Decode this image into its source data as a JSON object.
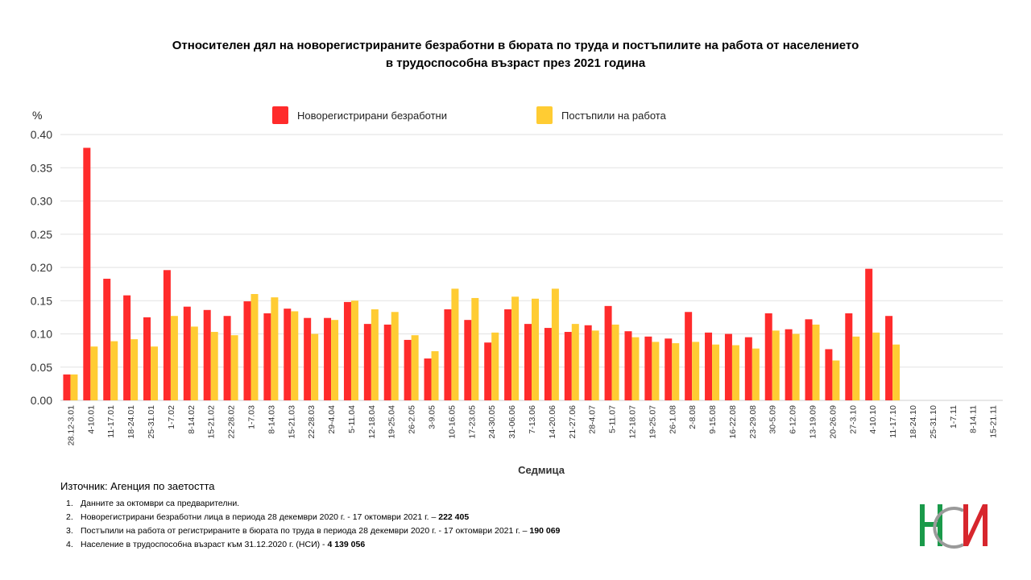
{
  "title_line1": "Относителен дял на новорегистрираните безработни в бюрата по труда и постъпилите на работа от населението",
  "title_line2": "в трудоспособна възраст през 2021 година",
  "source": "Източник: Агенция по заетостта",
  "notes": [
    {
      "num": "1.",
      "text": "Данните за октомври са предварителни.",
      "value": ""
    },
    {
      "num": "2.",
      "text": "Новорегистрирани безработни лица в периода 28 декември  2020 г. - 17 октомври 2021 г. – ",
      "value": "222 405"
    },
    {
      "num": "3.",
      "text": "Постъпили на работа от регистрираните в бюрата по труда в периода 28 декември  2020 г. - 17 октомври 2021 г. – ",
      "value": "190 069"
    },
    {
      "num": "4.",
      "text": "Население в трудоспособна възраст към 31.12.2020 г. (НСИ)  - ",
      "value": "4 139 056"
    }
  ],
  "logo": {
    "text": "НСИ",
    "colors": {
      "green": "#1a9a4a",
      "red": "#d7262d",
      "gray": "#9a9a9a"
    }
  },
  "chart_data": {
    "type": "bar",
    "title": "Относителен дял на новорегистрираните безработни в бюрата по труда и постъпилите на работа от населението в трудоспособна възраст през 2021 година",
    "xlabel": "Седмица",
    "ylabel": "%",
    "ylim": [
      0,
      0.4
    ],
    "yticks": [
      "0.00",
      "0.05",
      "0.10",
      "0.15",
      "0.20",
      "0.25",
      "0.30",
      "0.35",
      "0.40"
    ],
    "grid": true,
    "legend_position": "top",
    "categories": [
      "28.12-3.01",
      "4-10.01",
      "11-17.01",
      "18-24.01",
      "25-31.01",
      "1-7.02",
      "8-14.02",
      "15-21.02",
      "22-28.02",
      "1-7.03",
      "8-14.03",
      "15-21.03",
      "22-28.03",
      "29-4.04",
      "5-11.04",
      "12-18.04",
      "19-25.04",
      "26-2.05",
      "3-9.05",
      "10-16.05",
      "17-23.05",
      "24-30.05",
      "31-06.06",
      "7-13.06",
      "14-20.06",
      "21-27.06",
      "28-4.07",
      "5-11.07",
      "12-18.07",
      "19-25.07",
      "26-1.08",
      "2-8.08",
      "9-15.08",
      "16-22.08",
      "23-29.08",
      "30-5.09",
      "6-12.09",
      "13-19.09",
      "20-26.09",
      "27-3.10",
      "4-10.10",
      "11-17.10",
      "18-24.10",
      "25-31.10",
      "1-7.11",
      "8-14.11",
      "15-21.11"
    ],
    "series": [
      {
        "name": "Новорегистрирани безработни",
        "color": "#ff2b2b",
        "values": [
          0.039,
          0.38,
          0.183,
          0.158,
          0.125,
          0.196,
          0.141,
          0.136,
          0.127,
          0.149,
          0.131,
          0.138,
          0.124,
          0.124,
          0.148,
          0.115,
          0.114,
          0.091,
          0.063,
          0.137,
          0.121,
          0.087,
          0.137,
          0.115,
          0.109,
          0.103,
          0.113,
          0.142,
          0.104,
          0.096,
          0.093,
          0.133,
          0.102,
          0.1,
          0.095,
          0.131,
          0.107,
          0.122,
          0.077,
          0.131,
          0.198,
          0.127,
          null,
          null,
          null,
          null,
          null
        ]
      },
      {
        "name": "Постъпили на работа",
        "color": "#ffcc33",
        "values": [
          0.039,
          0.081,
          0.089,
          0.092,
          0.081,
          0.127,
          0.111,
          0.103,
          0.098,
          0.16,
          0.155,
          0.134,
          0.1,
          0.121,
          0.15,
          0.137,
          0.133,
          0.098,
          0.074,
          0.168,
          0.154,
          0.102,
          0.156,
          0.153,
          0.168,
          0.115,
          0.105,
          0.114,
          0.095,
          0.088,
          0.086,
          0.088,
          0.084,
          0.083,
          0.078,
          0.105,
          0.1,
          0.114,
          0.06,
          0.096,
          0.102,
          0.084,
          null,
          null,
          null,
          null,
          null
        ]
      }
    ]
  }
}
